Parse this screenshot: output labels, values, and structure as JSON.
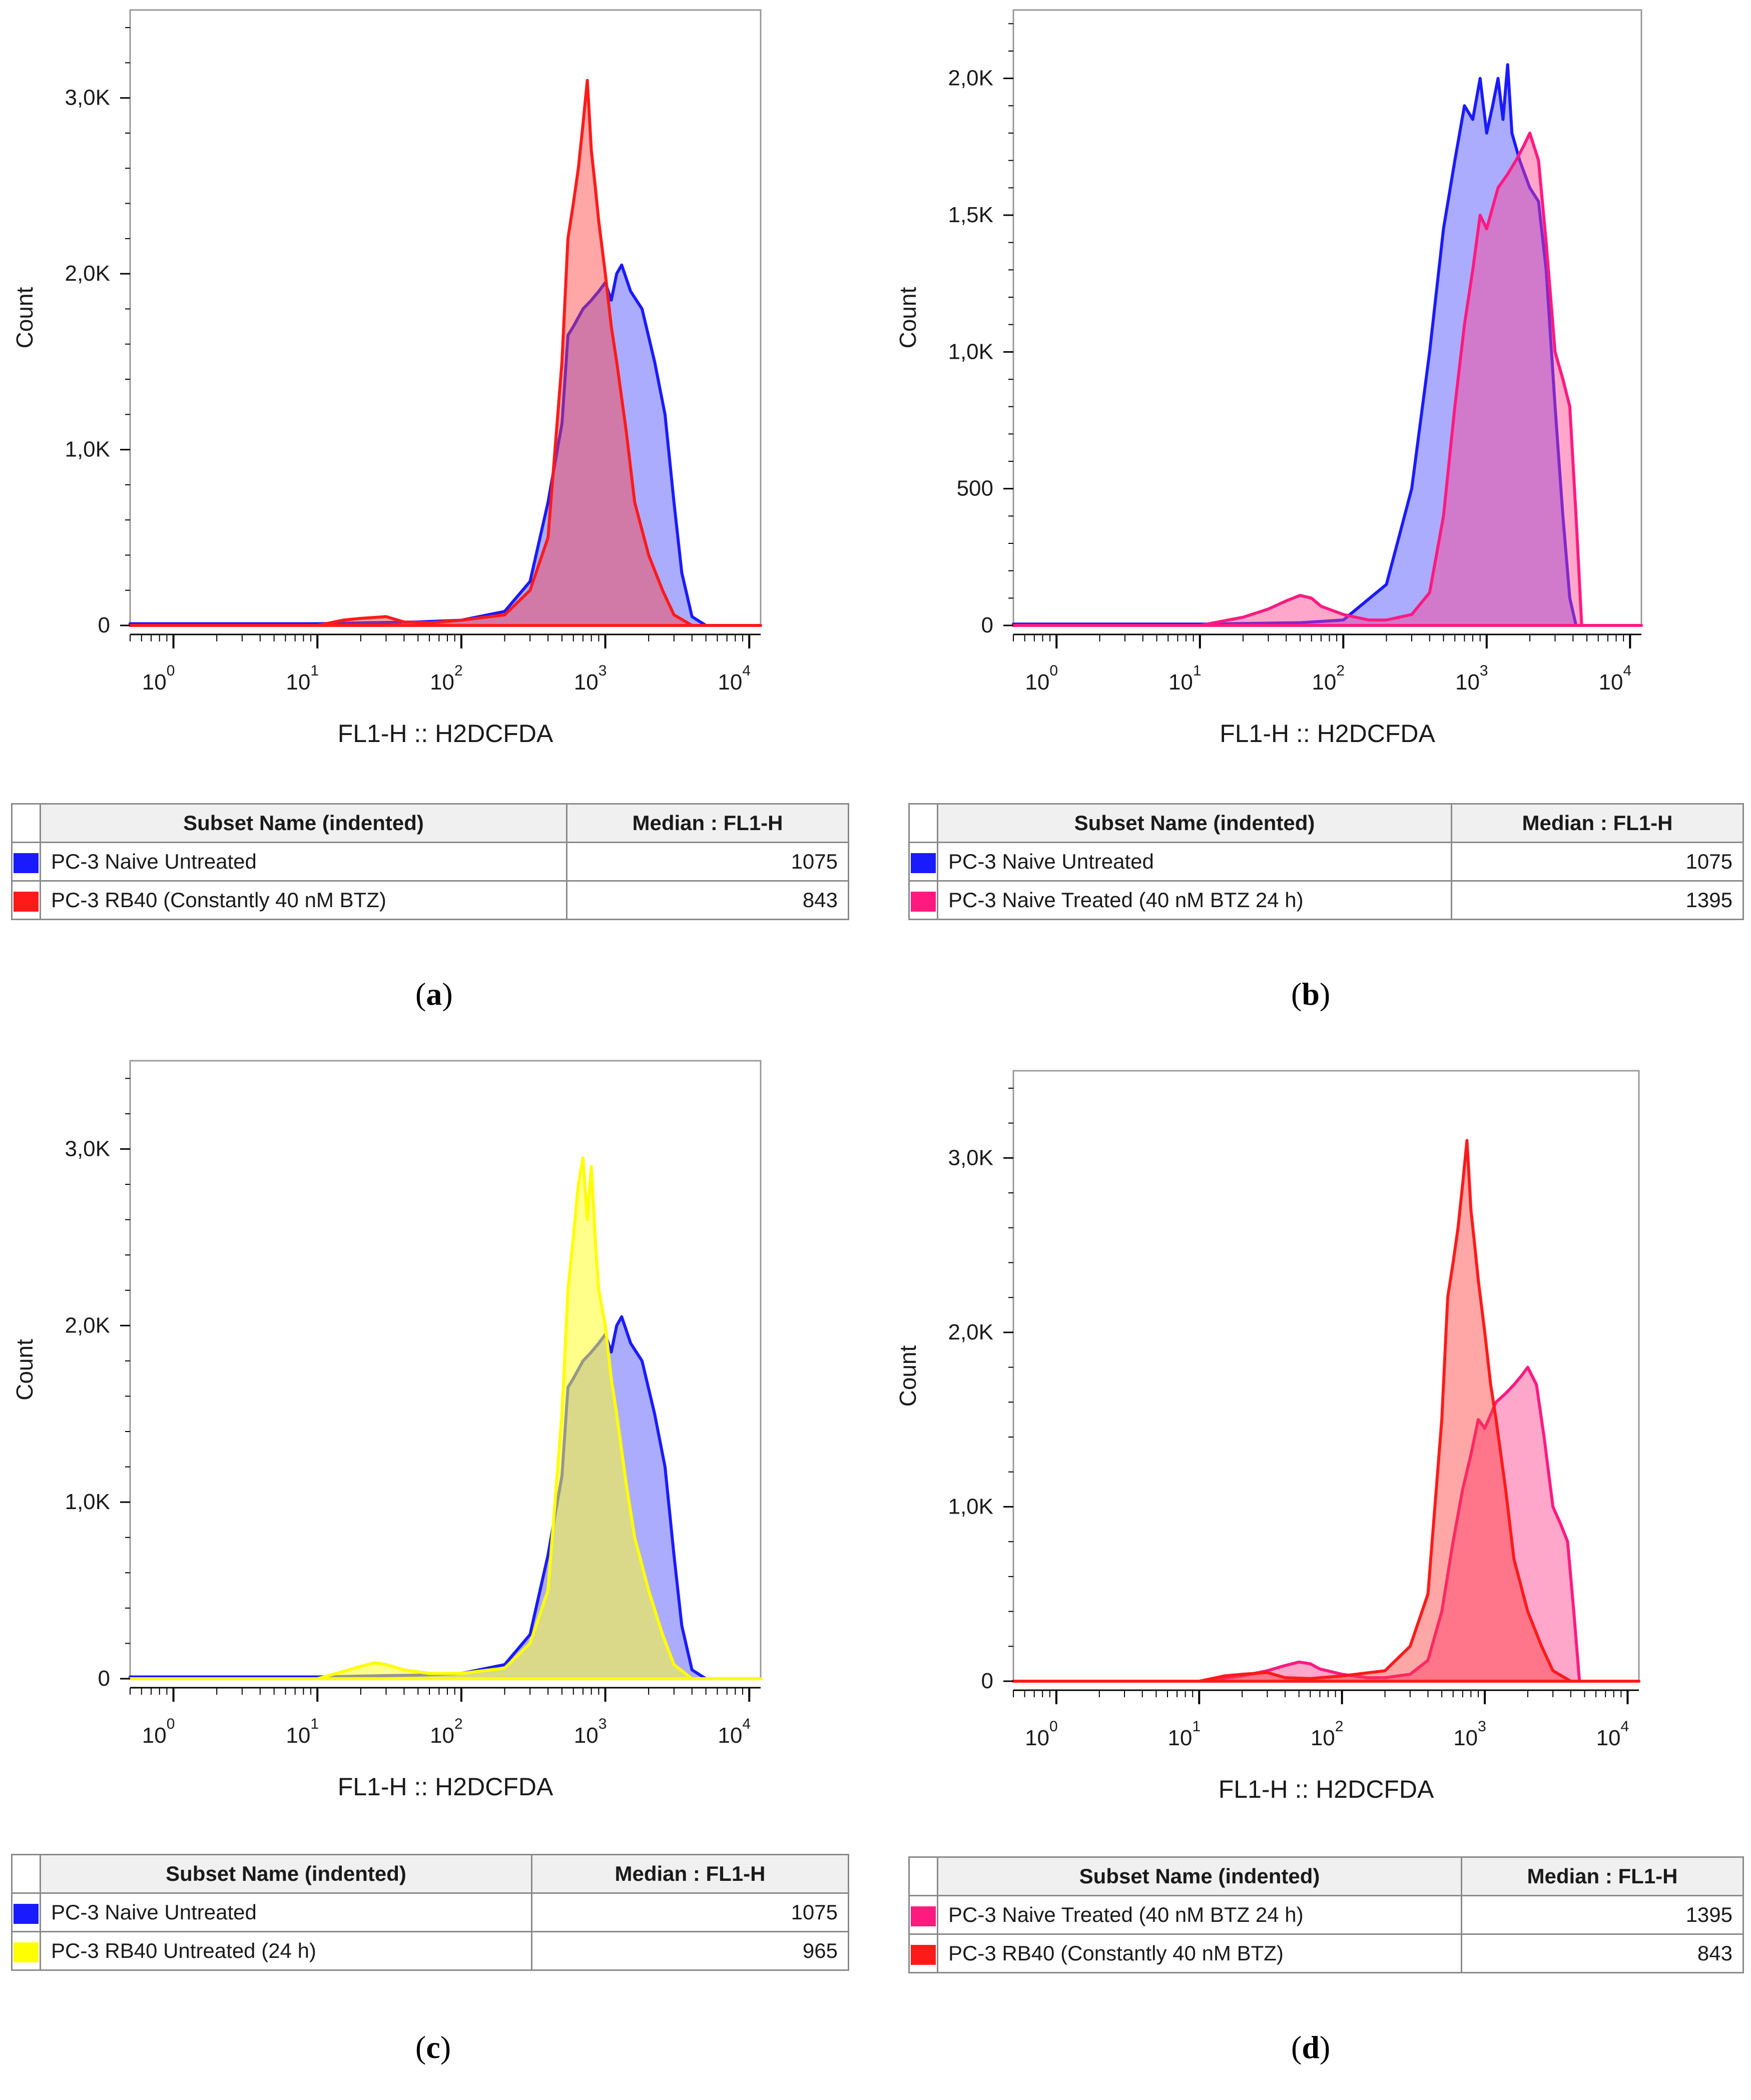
{
  "panels": [
    {
      "id": "a",
      "label": "a",
      "chart_data": {
        "type": "area",
        "xlabel": "FL1-H :: H2DCFDA",
        "ylabel": "Count",
        "x_scale": "log",
        "xlim": [
          0.5,
          12000
        ],
        "ylim": [
          0,
          3500
        ],
        "y_ticks": [
          {
            "v": 0,
            "label": "0"
          },
          {
            "v": 1000,
            "label": "1,0K"
          },
          {
            "v": 2000,
            "label": "2,0K"
          },
          {
            "v": 3000,
            "label": "3,0K"
          }
        ],
        "x_ticks": [
          "10^0",
          "10^1",
          "10^2",
          "10^3",
          "10^4"
        ],
        "series": [
          {
            "name": "PC-3 Naive Untreated",
            "color": "#1a1aff",
            "fill": "rgba(70,70,255,0.45)",
            "x": [
              0.5,
              10,
              20,
              50,
              100,
              200,
              300,
              400,
              500,
              550,
              600,
              700,
              800,
              900,
              1000,
              1100,
              1200,
              1300,
              1500,
              1800,
              2200,
              2600,
              3000,
              3400,
              4000,
              5000,
              12000
            ],
            "y": [
              10,
              10,
              15,
              20,
              30,
              80,
              250,
              700,
              1150,
              1650,
              1700,
              1800,
              1850,
              1900,
              1950,
              1850,
              2000,
              2050,
              1900,
              1800,
              1500,
              1200,
              700,
              300,
              50,
              0,
              0
            ]
          },
          {
            "name": "PC-3 RB40 (Constantly 40 nM BTZ)",
            "color": "#ff1a1a",
            "fill": "rgba(255,60,60,0.45)",
            "x": [
              0.5,
              10,
              15,
              20,
              30,
              40,
              60,
              100,
              200,
              300,
              400,
              500,
              550,
              600,
              650,
              700,
              750,
              800,
              850,
              900,
              1000,
              1100,
              1200,
              1400,
              1600,
              2000,
              2500,
              3000,
              4000,
              12000
            ],
            "y": [
              0,
              0,
              30,
              40,
              50,
              20,
              15,
              30,
              60,
              200,
              500,
              1500,
              2200,
              2400,
              2600,
              2850,
              3100,
              2700,
              2500,
              2300,
              2000,
              1700,
              1500,
              1100,
              700,
              400,
              200,
              60,
              0,
              0
            ]
          }
        ]
      },
      "legend": {
        "header_name": "Subset Name (indented)",
        "header_value": "Median : FL1-H",
        "rows": [
          {
            "color": "#1a1aff",
            "name": "PC-3 Naive Untreated",
            "value": "1075"
          },
          {
            "color": "#ff1a1a",
            "name": "PC-3 RB40 (Constantly 40 nM BTZ)",
            "value": "843"
          }
        ]
      }
    },
    {
      "id": "b",
      "label": "b",
      "chart_data": {
        "type": "area",
        "xlabel": "FL1-H :: H2DCFDA",
        "ylabel": "Count",
        "x_scale": "log",
        "xlim": [
          0.5,
          12000
        ],
        "ylim": [
          0,
          2250
        ],
        "y_ticks": [
          {
            "v": 0,
            "label": "0"
          },
          {
            "v": 500,
            "label": "500"
          },
          {
            "v": 1000,
            "label": "1,0K"
          },
          {
            "v": 1500,
            "label": "1,5K"
          },
          {
            "v": 2000,
            "label": "2,0K"
          }
        ],
        "x_ticks": [
          "10^0",
          "10^1",
          "10^2",
          "10^3",
          "10^4"
        ],
        "series": [
          {
            "name": "PC-3 Naive Untreated",
            "color": "#1a1aff",
            "fill": "rgba(70,70,255,0.45)",
            "x": [
              0.5,
              10,
              50,
              100,
              200,
              300,
              400,
              500,
              600,
              700,
              800,
              900,
              1000,
              1100,
              1200,
              1300,
              1400,
              1500,
              1700,
              2000,
              2300,
              2600,
              3000,
              3400,
              3800,
              4200,
              12000
            ],
            "y": [
              5,
              5,
              10,
              20,
              150,
              500,
              1000,
              1450,
              1700,
              1900,
              1850,
              2000,
              1800,
              1900,
              2000,
              1850,
              2050,
              1800,
              1700,
              1600,
              1550,
              1300,
              800,
              400,
              100,
              0,
              0
            ]
          },
          {
            "name": "PC-3 Naive Treated (40 nM BTZ 24 h)",
            "color": "#ff1a80",
            "fill": "rgba(255,60,140,0.45)",
            "x": [
              0.5,
              10,
              20,
              30,
              40,
              50,
              60,
              70,
              100,
              150,
              200,
              300,
              400,
              500,
              600,
              700,
              800,
              900,
              1000,
              1200,
              1400,
              1600,
              1800,
              2000,
              2300,
              2600,
              3000,
              3400,
              3800,
              4200,
              4600,
              12000
            ],
            "y": [
              0,
              0,
              30,
              60,
              90,
              110,
              100,
              70,
              40,
              20,
              20,
              40,
              120,
              400,
              800,
              1100,
              1300,
              1500,
              1450,
              1600,
              1650,
              1700,
              1750,
              1800,
              1700,
              1400,
              1000,
              900,
              800,
              400,
              0,
              0
            ]
          }
        ]
      },
      "legend": {
        "header_name": "Subset Name (indented)",
        "header_value": "Median : FL1-H",
        "rows": [
          {
            "color": "#1a1aff",
            "name": "PC-3 Naive Untreated",
            "value": "1075"
          },
          {
            "color": "#ff1a80",
            "name": "PC-3 Naive Treated (40 nM BTZ 24 h)",
            "value": "1395"
          }
        ]
      }
    },
    {
      "id": "c",
      "label": "c",
      "chart_data": {
        "type": "area",
        "xlabel": "FL1-H :: H2DCFDA",
        "ylabel": "Count",
        "x_scale": "log",
        "xlim": [
          0.5,
          12000
        ],
        "ylim": [
          0,
          3500
        ],
        "y_ticks": [
          {
            "v": 0,
            "label": "0"
          },
          {
            "v": 1000,
            "label": "1,0K"
          },
          {
            "v": 2000,
            "label": "2,0K"
          },
          {
            "v": 3000,
            "label": "3,0K"
          }
        ],
        "x_ticks": [
          "10^0",
          "10^1",
          "10^2",
          "10^3",
          "10^4"
        ],
        "series": [
          {
            "name": "PC-3 Naive Untreated",
            "color": "#1a1aff",
            "fill": "rgba(70,70,255,0.45)",
            "x": [
              0.5,
              10,
              20,
              50,
              100,
              200,
              300,
              400,
              500,
              550,
              600,
              700,
              800,
              900,
              1000,
              1100,
              1200,
              1300,
              1500,
              1800,
              2200,
              2600,
              3000,
              3400,
              4000,
              5000,
              12000
            ],
            "y": [
              10,
              10,
              15,
              20,
              30,
              80,
              250,
              700,
              1150,
              1650,
              1700,
              1800,
              1850,
              1900,
              1950,
              1850,
              2000,
              2050,
              1900,
              1800,
              1500,
              1200,
              700,
              300,
              50,
              0,
              0
            ]
          },
          {
            "name": "PC-3 RB40 Untreated (24 h)",
            "color": "#ffff00",
            "fill": "rgba(255,255,40,0.55)",
            "x": [
              0.5,
              10,
              15,
              20,
              25,
              30,
              40,
              60,
              100,
              200,
              300,
              400,
              500,
              550,
              600,
              650,
              700,
              750,
              800,
              850,
              900,
              1000,
              1100,
              1200,
              1400,
              1600,
              2000,
              2500,
              3000,
              4000,
              12000
            ],
            "y": [
              0,
              0,
              40,
              70,
              90,
              80,
              50,
              30,
              30,
              60,
              200,
              500,
              1500,
              2200,
              2500,
              2800,
              2950,
              2600,
              2900,
              2500,
              2200,
              2000,
              1700,
              1500,
              1100,
              800,
              500,
              250,
              80,
              0,
              0
            ]
          }
        ]
      },
      "legend": {
        "header_name": "Subset Name (indented)",
        "header_value": "Median : FL1-H",
        "rows": [
          {
            "color": "#1a1aff",
            "name": "PC-3 Naive Untreated",
            "value": "1075"
          },
          {
            "color": "#ffff00",
            "name": "PC-3 RB40 Untreated (24 h)",
            "value": "965"
          }
        ]
      }
    },
    {
      "id": "d",
      "label": "d",
      "chart_data": {
        "type": "area",
        "xlabel": "FL1-H :: H2DCFDA",
        "ylabel": "Count",
        "x_scale": "log",
        "xlim": [
          0.5,
          12000
        ],
        "ylim": [
          0,
          3500
        ],
        "y_ticks": [
          {
            "v": 0,
            "label": "0"
          },
          {
            "v": 1000,
            "label": "1,0K"
          },
          {
            "v": 2000,
            "label": "2,0K"
          },
          {
            "v": 3000,
            "label": "3,0K"
          }
        ],
        "x_ticks": [
          "10^0",
          "10^1",
          "10^2",
          "10^3",
          "10^4"
        ],
        "series": [
          {
            "name": "PC-3 Naive Treated (40 nM BTZ 24 h)",
            "color": "#ff1a80",
            "fill": "rgba(255,60,140,0.45)",
            "x": [
              0.5,
              10,
              20,
              30,
              40,
              50,
              60,
              70,
              100,
              150,
              200,
              300,
              400,
              500,
              600,
              700,
              800,
              900,
              1000,
              1200,
              1400,
              1600,
              1800,
              2000,
              2300,
              2600,
              3000,
              3400,
              3800,
              4200,
              4600,
              12000
            ],
            "y": [
              0,
              0,
              30,
              60,
              90,
              110,
              100,
              70,
              40,
              20,
              20,
              40,
              120,
              400,
              800,
              1100,
              1300,
              1500,
              1450,
              1600,
              1650,
              1700,
              1750,
              1800,
              1700,
              1400,
              1000,
              900,
              800,
              400,
              0,
              0
            ]
          },
          {
            "name": "PC-3 RB40 (Constantly 40 nM BTZ)",
            "color": "#ff1a1a",
            "fill": "rgba(255,60,60,0.45)",
            "x": [
              0.5,
              10,
              15,
              20,
              30,
              40,
              60,
              100,
              200,
              300,
              400,
              500,
              550,
              600,
              650,
              700,
              750,
              800,
              850,
              900,
              1000,
              1100,
              1200,
              1400,
              1600,
              2000,
              2500,
              3000,
              4000,
              12000
            ],
            "y": [
              0,
              0,
              30,
              40,
              50,
              20,
              15,
              30,
              60,
              200,
              500,
              1500,
              2200,
              2400,
              2600,
              2850,
              3100,
              2700,
              2500,
              2300,
              2000,
              1700,
              1500,
              1100,
              700,
              400,
              200,
              60,
              0,
              0
            ]
          }
        ]
      },
      "legend": {
        "header_name": "Subset Name (indented)",
        "header_value": "Median : FL1-H",
        "rows": [
          {
            "color": "#ff1a80",
            "name": "PC-3 Naive Treated (40 nM BTZ 24 h)",
            "value": "1395"
          },
          {
            "color": "#ff1a1a",
            "name": "PC-3 RB40 (Constantly 40 nM BTZ)",
            "value": "843"
          }
        ]
      }
    }
  ]
}
